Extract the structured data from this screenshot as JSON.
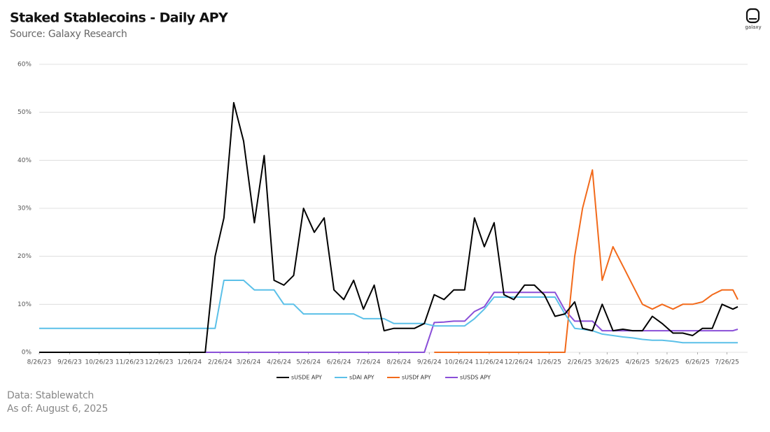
{
  "chart_data": {
    "type": "line",
    "title": "Staked Stablecoins - Daily APY",
    "subtitle": "Source: Galaxy Research",
    "logo_text": "galaxy",
    "footer": [
      "Data: Stablewatch",
      "As of: August 6, 2025"
    ],
    "x": [
      "8/26/23",
      "9/1/23",
      "9/11/23",
      "9/21/23",
      "10/1/23",
      "10/11/23",
      "10/21/23",
      "11/1/23",
      "11/11/23",
      "11/21/23",
      "12/1/23",
      "12/11/23",
      "12/21/23",
      "1/1/24",
      "1/11/24",
      "1/21/24",
      "2/1/24",
      "2/11/24",
      "2/21/24",
      "3/1/24",
      "3/11/24",
      "3/21/24",
      "4/1/24",
      "4/11/24",
      "4/21/24",
      "5/1/24",
      "5/11/24",
      "5/21/24",
      "6/1/24",
      "6/11/24",
      "6/21/24",
      "7/1/24",
      "7/11/24",
      "7/21/24",
      "8/1/24",
      "8/11/24",
      "8/21/24",
      "9/1/24",
      "9/11/24",
      "9/21/24",
      "10/1/24",
      "10/11/24",
      "10/21/24",
      "11/1/24",
      "11/11/24",
      "11/21/24",
      "12/1/24",
      "12/11/24",
      "12/21/24",
      "1/1/25",
      "1/11/25",
      "1/21/25",
      "2/1/25",
      "2/11/25",
      "2/21/25",
      "3/1/25",
      "3/11/25",
      "3/21/25",
      "4/1/25",
      "4/11/25",
      "4/21/25",
      "5/1/25",
      "5/11/25",
      "5/21/25",
      "6/1/25",
      "6/11/25",
      "6/21/25",
      "7/1/25",
      "7/11/25",
      "7/21/25",
      "8/1/25",
      "8/6/25"
    ],
    "xlim": [
      "8/26/23",
      "8/6/25"
    ],
    "xticks": [
      "8/26/23",
      "9/26/23",
      "10/26/23",
      "11/26/23",
      "12/26/23",
      "1/26/24",
      "2/26/24",
      "3/26/24",
      "4/26/24",
      "5/26/24",
      "6/26/24",
      "7/26/24",
      "8/26/24",
      "9/26/24",
      "10/26/24",
      "11/26/24",
      "12/26/24",
      "1/26/25",
      "2/26/25",
      "3/26/25",
      "4/26/25",
      "5/26/25",
      "6/26/25",
      "7/26/25"
    ],
    "ylim": [
      0,
      60
    ],
    "yticks": [
      {
        "value": 0,
        "label": "0%"
      },
      {
        "value": 10,
        "label": "10%"
      },
      {
        "value": 20,
        "label": "20%"
      },
      {
        "value": 30,
        "label": "30%"
      },
      {
        "value": 40,
        "label": "40%"
      },
      {
        "value": 50,
        "label": "50%"
      },
      {
        "value": 60,
        "label": "60%"
      }
    ],
    "grid": true,
    "legend": "bottom",
    "series": [
      {
        "name": "sUSDE APY",
        "color": "#000000",
        "values": [
          0,
          0,
          0,
          0,
          0,
          0,
          0,
          0,
          0,
          0,
          0,
          0,
          0,
          0,
          0,
          0,
          0,
          0,
          20,
          28,
          52,
          44,
          27,
          41,
          15,
          14,
          16,
          30,
          25,
          28,
          13,
          11,
          15,
          9,
          14,
          4.5,
          5,
          5,
          5,
          6,
          12,
          11,
          13,
          13,
          28,
          22,
          27,
          12,
          11,
          14,
          14,
          12,
          7.5,
          8,
          10.5,
          5,
          4.5,
          10,
          4.5,
          4.8,
          4.5,
          4.5,
          7.5,
          6,
          4,
          4,
          3.5,
          5,
          5,
          10,
          9,
          9.5
        ]
      },
      {
        "name": "sDAI APY",
        "color": "#5bc0e8",
        "values": [
          5,
          5,
          5,
          5,
          5,
          5,
          5,
          5,
          5,
          5,
          5,
          5,
          5,
          5,
          5,
          5,
          5,
          5,
          5,
          15,
          15,
          15,
          13,
          13,
          13,
          10,
          10,
          8,
          8,
          8,
          8,
          8,
          8,
          7,
          7,
          7,
          6,
          6,
          6,
          6,
          5.5,
          5.5,
          5.5,
          5.5,
          7,
          9,
          11.5,
          11.5,
          11.5,
          11.5,
          11.5,
          11.5,
          11.5,
          8,
          5,
          4.8,
          4.5,
          3.8,
          3.5,
          3.2,
          3,
          2.7,
          2.5,
          2.5,
          2.3,
          2,
          2,
          2,
          2,
          2,
          2,
          2
        ]
      },
      {
        "name": "sUSDf APY",
        "color": "#f26a1b",
        "values": [
          null,
          null,
          null,
          null,
          null,
          null,
          null,
          null,
          null,
          null,
          null,
          null,
          null,
          null,
          null,
          null,
          null,
          null,
          null,
          null,
          null,
          null,
          null,
          null,
          null,
          null,
          null,
          null,
          null,
          null,
          null,
          null,
          null,
          null,
          null,
          null,
          null,
          null,
          null,
          null,
          0,
          0,
          0,
          0,
          0,
          0,
          0,
          0,
          0,
          0,
          0,
          0,
          0,
          0,
          20,
          30,
          38,
          15,
          22,
          18,
          14,
          10,
          9,
          10,
          9,
          10,
          10,
          10.5,
          12,
          13,
          13,
          11
        ]
      },
      {
        "name": "sUSDS APY",
        "color": "#8a4fd8",
        "values": [
          0,
          0,
          0,
          0,
          0,
          0,
          0,
          0,
          0,
          0,
          0,
          0,
          0,
          0,
          0,
          0,
          0,
          0,
          0,
          0,
          0,
          0,
          0,
          0,
          0,
          0,
          0,
          0,
          0,
          0,
          0,
          0,
          0,
          0,
          0,
          0,
          0,
          0,
          0,
          0,
          6.2,
          6.3,
          6.5,
          6.5,
          8.5,
          9.5,
          12.5,
          12.5,
          12.5,
          12.5,
          12.5,
          12.5,
          12.5,
          8.8,
          6.5,
          6.5,
          6.5,
          4.5,
          4.5,
          4.5,
          4.5,
          4.5,
          4.5,
          4.5,
          4.5,
          4.5,
          4.5,
          4.5,
          4.5,
          4.5,
          4.5,
          4.8
        ]
      }
    ]
  }
}
